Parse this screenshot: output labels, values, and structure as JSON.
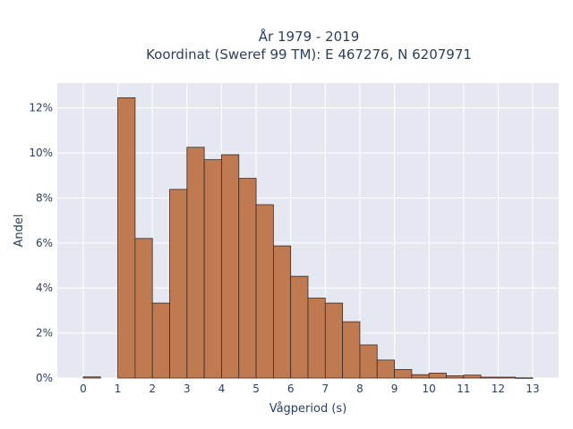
{
  "chart_data": {
    "type": "bar",
    "title": "År 1979 - 2019",
    "subtitle": "Koordinat (Sweref 99 TM): E 467276, N 6207971",
    "xlabel": "Vågperiod (s)",
    "ylabel": "Andel",
    "xlim": [
      -0.75,
      13.75
    ],
    "ylim": [
      0,
      0.131
    ],
    "x_ticks": [
      0,
      1,
      2,
      3,
      4,
      5,
      6,
      7,
      8,
      9,
      10,
      11,
      12,
      13
    ],
    "x_tick_labels": [
      "0",
      "1",
      "2",
      "3",
      "4",
      "5",
      "6",
      "7",
      "8",
      "9",
      "10",
      "11",
      "12",
      "13"
    ],
    "y_ticks": [
      0,
      0.02,
      0.04,
      0.06,
      0.08,
      0.1,
      0.12
    ],
    "y_tick_labels": [
      "0%",
      "2%",
      "4%",
      "6%",
      "8%",
      "10%",
      "12%"
    ],
    "bin_width": 0.5,
    "bins": [
      {
        "x0": 0.0,
        "x1": 0.5,
        "value": 0.0005
      },
      {
        "x0": 0.5,
        "x1": 1.0,
        "value": 0.0
      },
      {
        "x0": 1.0,
        "x1": 1.5,
        "value": 0.1245
      },
      {
        "x0": 1.5,
        "x1": 2.0,
        "value": 0.062
      },
      {
        "x0": 2.0,
        "x1": 2.5,
        "value": 0.0333
      },
      {
        "x0": 2.5,
        "x1": 3.0,
        "value": 0.0838
      },
      {
        "x0": 3.0,
        "x1": 3.5,
        "value": 0.1025
      },
      {
        "x0": 3.5,
        "x1": 4.0,
        "value": 0.097
      },
      {
        "x0": 4.0,
        "x1": 4.5,
        "value": 0.0992
      },
      {
        "x0": 4.5,
        "x1": 5.0,
        "value": 0.0887
      },
      {
        "x0": 5.0,
        "x1": 5.5,
        "value": 0.077
      },
      {
        "x0": 5.5,
        "x1": 6.0,
        "value": 0.0587
      },
      {
        "x0": 6.0,
        "x1": 6.5,
        "value": 0.0452
      },
      {
        "x0": 6.5,
        "x1": 7.0,
        "value": 0.0355
      },
      {
        "x0": 7.0,
        "x1": 7.5,
        "value": 0.0333
      },
      {
        "x0": 7.5,
        "x1": 8.0,
        "value": 0.025
      },
      {
        "x0": 8.0,
        "x1": 8.5,
        "value": 0.0147
      },
      {
        "x0": 8.5,
        "x1": 9.0,
        "value": 0.008
      },
      {
        "x0": 9.0,
        "x1": 9.5,
        "value": 0.0038
      },
      {
        "x0": 9.5,
        "x1": 10.0,
        "value": 0.0015
      },
      {
        "x0": 10.0,
        "x1": 10.5,
        "value": 0.0022
      },
      {
        "x0": 10.5,
        "x1": 11.0,
        "value": 0.001
      },
      {
        "x0": 11.0,
        "x1": 11.5,
        "value": 0.0013
      },
      {
        "x0": 11.5,
        "x1": 12.0,
        "value": 0.0004
      },
      {
        "x0": 12.0,
        "x1": 12.5,
        "value": 0.0004
      },
      {
        "x0": 12.5,
        "x1": 13.0,
        "value": 0.0001
      }
    ],
    "grid": true,
    "colors": {
      "bar_fill": "#c07a52",
      "bar_edge": "#3d2a1f",
      "plot_bg": "#e5e8f0",
      "grid": "#ffffff"
    }
  }
}
